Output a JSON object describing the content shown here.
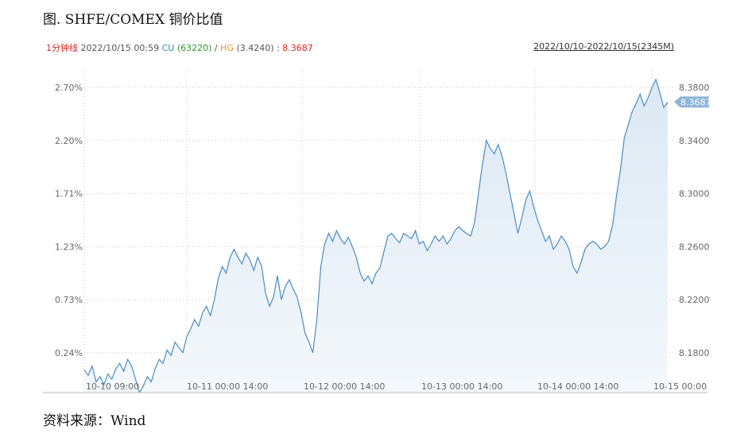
{
  "title": "图. SHFE/COMEX 铜价比值",
  "source": "资料来源：Wind",
  "header": {
    "interval": "1分钟线",
    "datetime": "2022/10/15 00:59",
    "cu_label": "CU",
    "cu_value": "(63220)",
    "separator": "/",
    "hg_label": "HG",
    "hg_value": "(3.4240)",
    "ratio_text": ": 8.3687",
    "range": "2022/10/10-2022/10/15(2345M)"
  },
  "colors": {
    "line": "#4a8cc4",
    "fill_top": "#dce8f3",
    "fill_bottom": "#f4f8fc",
    "grid": "#c8c8c8",
    "badge": "#8fb5d8"
  },
  "chart_data": {
    "type": "area",
    "title": "",
    "xlabel": "",
    "ylabel": "",
    "x_tick_labels": [
      "10-10 09:00",
      "10-11 00:00 14:00",
      "10-12 00:00 14:00",
      "10-13 00:00 14:00",
      "10-14 00:00 14:00",
      "10-15 00:00"
    ],
    "left_tick_labels": [
      "2.70%",
      "2.20%",
      "1.71%",
      "1.23%",
      "0.73%",
      "0.24%"
    ],
    "right_tick_labels": [
      "8.3800",
      "8.3400",
      "8.3000",
      "8.2600",
      "8.2200",
      "8.1800"
    ],
    "ylim": [
      8.15,
      8.395
    ],
    "last_value_label": "8.3687",
    "series": [
      {
        "values": [
          8.167,
          8.163,
          8.17,
          8.158,
          8.162,
          8.156,
          8.164,
          8.16,
          8.168,
          8.172,
          8.166,
          8.175,
          8.17,
          8.16,
          8.15,
          8.155,
          8.162,
          8.158,
          8.168,
          8.175,
          8.172,
          8.182,
          8.178,
          8.188,
          8.184,
          8.18,
          8.192,
          8.198,
          8.205,
          8.2,
          8.21,
          8.215,
          8.208,
          8.22,
          8.236,
          8.245,
          8.24,
          8.252,
          8.258,
          8.252,
          8.247,
          8.255,
          8.25,
          8.242,
          8.252,
          8.245,
          8.225,
          8.215,
          8.222,
          8.238,
          8.22,
          8.23,
          8.235,
          8.228,
          8.222,
          8.21,
          8.195,
          8.188,
          8.18,
          8.205,
          8.245,
          8.262,
          8.27,
          8.264,
          8.272,
          8.266,
          8.262,
          8.267,
          8.26,
          8.252,
          8.24,
          8.234,
          8.238,
          8.232,
          8.24,
          8.244,
          8.256,
          8.268,
          8.27,
          8.266,
          8.263,
          8.27,
          8.268,
          8.266,
          8.272,
          8.262,
          8.264,
          8.257,
          8.262,
          8.268,
          8.264,
          8.268,
          8.262,
          8.266,
          8.272,
          8.275,
          8.272,
          8.27,
          8.268,
          8.278,
          8.3,
          8.322,
          8.34,
          8.334,
          8.33,
          8.337,
          8.328,
          8.315,
          8.3,
          8.285,
          8.27,
          8.282,
          8.295,
          8.302,
          8.29,
          8.28,
          8.272,
          8.264,
          8.268,
          8.258,
          8.262,
          8.268,
          8.264,
          8.258,
          8.245,
          8.24,
          8.248,
          8.258,
          8.262,
          8.264,
          8.262,
          8.258,
          8.26,
          8.264,
          8.276,
          8.298,
          8.318,
          8.342,
          8.352,
          8.362,
          8.368,
          8.375,
          8.366,
          8.372,
          8.38,
          8.386,
          8.376,
          8.365,
          8.369
        ]
      }
    ]
  }
}
